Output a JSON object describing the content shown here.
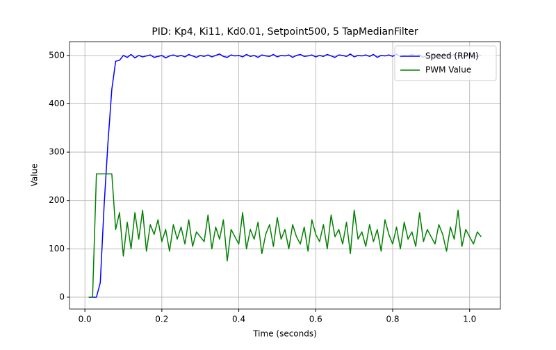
{
  "chart_data": {
    "type": "line",
    "title": "PID: Kp4, Ki11, Kd0.01, Setpoint500, 5 TapMedianFilter",
    "x_label": "Time (seconds)",
    "y_label": "Value",
    "x": [
      0.01,
      0.02,
      0.03,
      0.04,
      0.05,
      0.06,
      0.07,
      0.08,
      0.09,
      0.1,
      0.11,
      0.12,
      0.13,
      0.14,
      0.15,
      0.16,
      0.17,
      0.18,
      0.19,
      0.2,
      0.21,
      0.22,
      0.23,
      0.24,
      0.25,
      0.26,
      0.27,
      0.28,
      0.29,
      0.3,
      0.31,
      0.32,
      0.33,
      0.34,
      0.35,
      0.36,
      0.37,
      0.38,
      0.39,
      0.4,
      0.41,
      0.42,
      0.43,
      0.44,
      0.45,
      0.46,
      0.47,
      0.48,
      0.49,
      0.5,
      0.51,
      0.52,
      0.53,
      0.54,
      0.55,
      0.56,
      0.57,
      0.58,
      0.59,
      0.6,
      0.61,
      0.62,
      0.63,
      0.64,
      0.65,
      0.66,
      0.67,
      0.68,
      0.69,
      0.7,
      0.71,
      0.72,
      0.73,
      0.74,
      0.75,
      0.76,
      0.77,
      0.78,
      0.79,
      0.8,
      0.81,
      0.82,
      0.83,
      0.84,
      0.85,
      0.86,
      0.87,
      0.88,
      0.89,
      0.9,
      0.91,
      0.92,
      0.93,
      0.94,
      0.95,
      0.96,
      0.97,
      0.98,
      0.99,
      1.0,
      1.01,
      1.02,
      1.03
    ],
    "series": [
      {
        "name": "Speed (RPM)",
        "color": "#0000ff",
        "values": [
          0,
          0,
          0,
          30,
          190,
          320,
          430,
          488,
          490,
          500,
          496,
          502,
          495,
          500,
          497,
          499,
          501,
          496,
          498,
          500,
          495,
          499,
          501,
          498,
          500,
          497,
          502,
          499,
          496,
          500,
          498,
          501,
          497,
          500,
          503,
          498,
          496,
          501,
          499,
          500,
          497,
          502,
          498,
          500,
          496,
          501,
          499,
          498,
          502,
          497,
          500,
          499,
          501,
          496,
          500,
          502,
          498,
          499,
          501,
          497,
          500,
          498,
          502,
          499,
          496,
          501,
          500,
          498,
          503,
          497,
          500,
          499,
          501,
          498,
          502,
          496,
          500,
          499,
          501,
          498,
          503,
          497,
          500,
          499,
          502,
          498,
          501,
          496,
          500,
          499,
          502,
          497,
          500,
          501,
          498,
          502,
          499,
          500,
          497,
          501,
          500,
          498,
          500
        ]
      },
      {
        "name": "PWM Value",
        "color": "#008000",
        "values": [
          0,
          0,
          255,
          255,
          255,
          255,
          255,
          140,
          175,
          85,
          155,
          100,
          175,
          120,
          180,
          95,
          150,
          130,
          160,
          115,
          140,
          95,
          150,
          120,
          145,
          110,
          160,
          105,
          135,
          125,
          115,
          170,
          100,
          145,
          120,
          160,
          75,
          140,
          125,
          110,
          175,
          100,
          140,
          120,
          155,
          90,
          130,
          150,
          105,
          165,
          120,
          140,
          100,
          150,
          125,
          110,
          145,
          95,
          160,
          130,
          115,
          150,
          100,
          170,
          125,
          140,
          110,
          155,
          90,
          180,
          120,
          135,
          105,
          150,
          115,
          140,
          95,
          160,
          130,
          110,
          145,
          100,
          155,
          120,
          135,
          105,
          175,
          115,
          140,
          125,
          110,
          150,
          130,
          95,
          145,
          120,
          180,
          105,
          140,
          125,
          110,
          135,
          125
        ]
      }
    ],
    "xlim": [
      -0.04,
      1.08
    ],
    "ylim": [
      -24.5,
      528.5
    ],
    "xticks": [
      {
        "value": 0,
        "label": "0.0"
      },
      {
        "value": 0.2,
        "label": "0.2"
      },
      {
        "value": 0.4,
        "label": "0.4"
      },
      {
        "value": 0.6,
        "label": "0.6"
      },
      {
        "value": 0.8,
        "label": "0.8"
      },
      {
        "value": 1.0,
        "label": "1.0"
      }
    ],
    "yticks": [
      0,
      100,
      200,
      300,
      400,
      500
    ],
    "grid": true,
    "legend": "upper right"
  }
}
